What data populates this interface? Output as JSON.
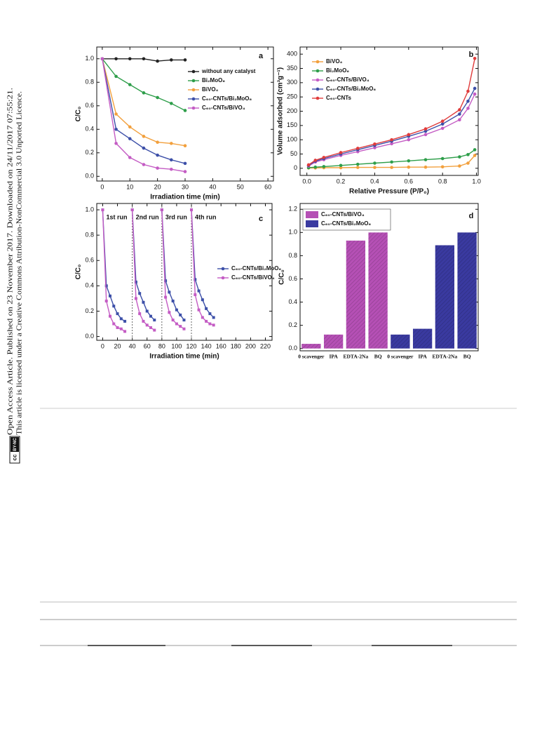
{
  "sidebar": {
    "line1": "Open Access Article. Published on 23 November 2017. Downloaded on 24/11/2017 07:55:21.",
    "line2": "This article is licensed under a Creative Commons Attribution-NonCommercial 3.0 Unported Licence.",
    "license_icon": "cc",
    "badge": "BY-NC"
  },
  "chart_data": [
    {
      "type": "line",
      "panel_label": "a",
      "xlabel": "Irradiation time (min)",
      "ylabel": "C/C₀",
      "xlim": [
        -2,
        62
      ],
      "xticks": [
        0,
        10,
        20,
        30,
        40,
        50,
        60
      ],
      "ylim": [
        -0.04,
        1.1
      ],
      "yticks": [
        {
          "value": 0,
          "label": "0.0"
        },
        0.2,
        0.4,
        0.6,
        0.8,
        {
          "value": 1,
          "label": "1.0"
        }
      ],
      "legend": "upper right",
      "x": [
        0,
        5,
        10,
        15,
        20,
        25,
        30
      ],
      "series": [
        {
          "name": "without any catalyst",
          "color": "#222222",
          "values": [
            1,
            1,
            1,
            1,
            0.98,
            0.99,
            0.99
          ]
        },
        {
          "name": "Bi₂MoO₆",
          "color": "#2e9e4a",
          "values": [
            1,
            0.85,
            0.78,
            0.71,
            0.67,
            0.62,
            0.56
          ]
        },
        {
          "name": "BiVO₄",
          "color": "#f2a03d",
          "values": [
            1,
            0.53,
            0.42,
            0.34,
            0.29,
            0.28,
            0.26
          ]
        },
        {
          "name": "C₆₀-CNTs/Bi₂MoO₆",
          "color": "#3c4fa8",
          "values": [
            1,
            0.4,
            0.32,
            0.24,
            0.18,
            0.14,
            0.11
          ]
        },
        {
          "name": "C₆₀-CNTs/BiVO₄",
          "color": "#c45cc4",
          "values": [
            1,
            0.28,
            0.16,
            0.1,
            0.07,
            0.06,
            0.04
          ]
        }
      ]
    },
    {
      "type": "line",
      "panel_label": "b",
      "xlabel": "Relative Pressure (P/P₀)",
      "ylabel": "Volume adsorbed (cm³g⁻¹)",
      "xlim": [
        -0.04,
        1.01
      ],
      "xticks": [
        {
          "value": 0,
          "label": "0.0"
        },
        0.2,
        0.4,
        0.6,
        0.8,
        {
          "value": 1,
          "label": "1.0"
        }
      ],
      "ylim": [
        -25,
        425
      ],
      "yticks": [
        0,
        50,
        100,
        150,
        200,
        250,
        300,
        350,
        400
      ],
      "legend": "upper left",
      "x": [
        0.01,
        0.05,
        0.1,
        0.2,
        0.3,
        0.4,
        0.5,
        0.6,
        0.7,
        0.8,
        0.9,
        0.95,
        0.99
      ],
      "series": [
        {
          "name": "BiVO₄",
          "color": "#f2a03d",
          "values": [
            1,
            1,
            2,
            2,
            3,
            3,
            3,
            4,
            4,
            5,
            8,
            18,
            45
          ]
        },
        {
          "name": "Bi₂MoO₆",
          "color": "#2e9e4a",
          "values": [
            2,
            4,
            6,
            10,
            14,
            18,
            22,
            26,
            30,
            34,
            40,
            48,
            65
          ]
        },
        {
          "name": "C₆₀-CNTs/BiVO₄",
          "color": "#c45cc4",
          "values": [
            8,
            22,
            30,
            45,
            58,
            72,
            86,
            100,
            118,
            140,
            170,
            210,
            260
          ]
        },
        {
          "name": "C₆₀-CNTs/Bi₂MoO₆",
          "color": "#3c4fa8",
          "values": [
            10,
            25,
            34,
            50,
            65,
            80,
            95,
            112,
            130,
            155,
            190,
            235,
            280
          ]
        },
        {
          "name": "C₆₀-CNTs",
          "color": "#e03c3c",
          "values": [
            12,
            28,
            38,
            55,
            70,
            85,
            100,
            118,
            138,
            165,
            205,
            270,
            385
          ]
        }
      ]
    },
    {
      "type": "line",
      "panel_label": "c",
      "xlabel": "Irradiation time (min)",
      "ylabel": "C/C₀",
      "xlim": [
        -8,
        229
      ],
      "xticks": [
        0,
        20,
        40,
        60,
        80,
        100,
        120,
        140,
        160,
        180,
        200,
        220
      ],
      "ylim": [
        -0.03,
        1.05
      ],
      "yticks": [
        {
          "value": 0,
          "label": "0.0"
        },
        0.2,
        0.4,
        0.6,
        0.8,
        {
          "value": 1,
          "label": "1.0"
        }
      ],
      "legend": "center right",
      "annotations": [
        "1st run",
        "2nd run",
        "3rd run",
        "4th run"
      ],
      "vlines": [
        40,
        80,
        120
      ],
      "x": [
        0,
        5,
        10,
        15,
        20,
        25,
        30,
        null,
        40,
        45,
        50,
        55,
        60,
        65,
        70,
        null,
        80,
        85,
        90,
        95,
        100,
        105,
        110,
        null,
        120,
        125,
        130,
        135,
        140,
        145,
        150
      ],
      "series": [
        {
          "name": "C₆₀-CNTs/Bi₂MoO₆",
          "color": "#3c4fa8",
          "values": [
            1,
            0.4,
            0.32,
            0.24,
            0.18,
            0.14,
            0.12,
            null,
            1,
            0.43,
            0.34,
            0.27,
            0.2,
            0.16,
            0.13,
            null,
            1,
            0.44,
            0.35,
            0.28,
            0.21,
            0.17,
            0.13,
            null,
            1,
            0.45,
            0.36,
            0.29,
            0.22,
            0.18,
            0.15
          ]
        },
        {
          "name": "C₆₀-CNTs/BiVO₄",
          "color": "#c45cc4",
          "values": [
            1,
            0.28,
            0.16,
            0.1,
            0.07,
            0.06,
            0.04,
            null,
            1,
            0.3,
            0.18,
            0.12,
            0.09,
            0.07,
            0.05,
            null,
            1,
            0.31,
            0.19,
            0.13,
            0.1,
            0.08,
            0.06,
            null,
            1,
            0.33,
            0.21,
            0.15,
            0.12,
            0.1,
            0.09
          ]
        }
      ]
    },
    {
      "type": "bar",
      "panel_label": "d",
      "ylabel": "C/C₀",
      "ylim": [
        -0.02,
        1.25
      ],
      "yticks": [
        {
          "value": 0,
          "label": "0.0"
        },
        0.2,
        0.4,
        0.6,
        0.8,
        {
          "value": 1,
          "label": "1.0"
        },
        1.2
      ],
      "legend": "upper left",
      "hatch": true,
      "categories": [
        "0 scavenger",
        "IPA",
        "EDTA-2Na",
        "BQ",
        "0 scavenger",
        "IPA",
        "EDTA-2Na",
        "BQ"
      ],
      "series": [
        {
          "name": "C₆₀-CNTs/BiVO₄",
          "color": "#b550b5",
          "values": [
            0.04,
            0.12,
            0.93,
            1,
            null,
            null,
            null,
            null
          ]
        },
        {
          "name": "C₆₀-CNTs/Bi₂MoO₆",
          "color": "#3a3aa0",
          "values": [
            null,
            null,
            null,
            null,
            0.12,
            0.17,
            0.89,
            1
          ]
        }
      ]
    }
  ]
}
